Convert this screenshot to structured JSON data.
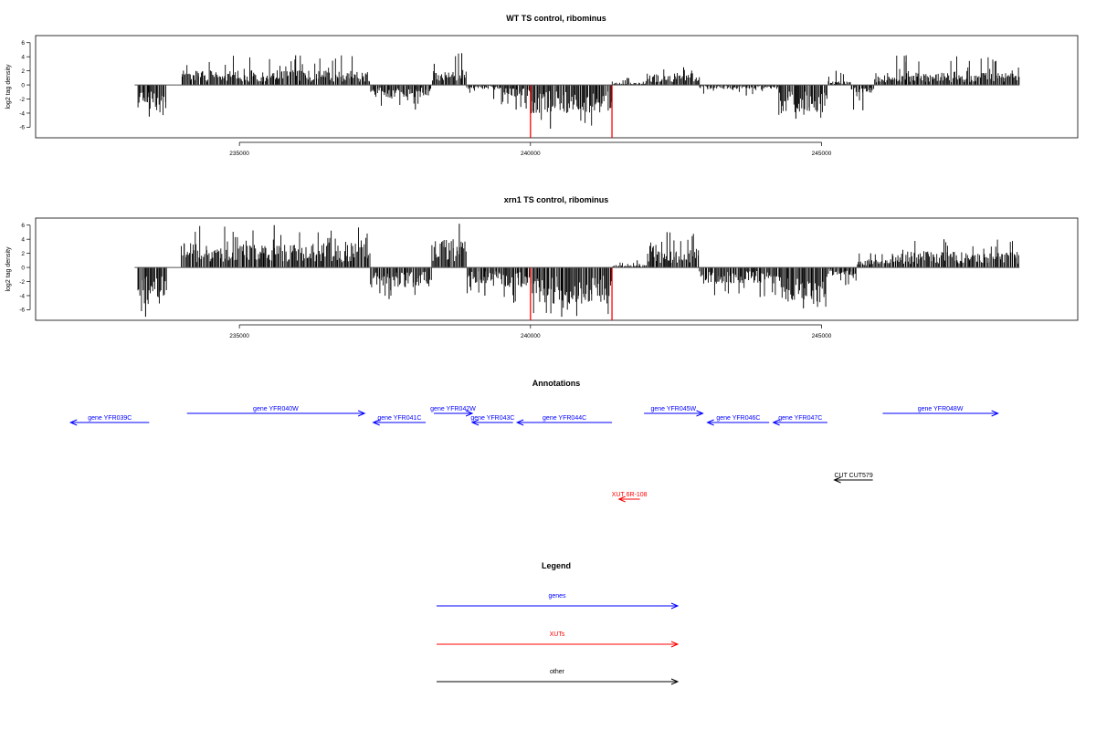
{
  "colors": {
    "genes": "#0000ff",
    "xuts": "#ff0000",
    "other": "#000000",
    "signal": "#000000",
    "marker": "#ff0000"
  },
  "chart_data": [
    {
      "type": "bar",
      "title": "WT TS control, ribominus",
      "ylabel": "log2 tag density",
      "ylim": [
        -7.5,
        7
      ],
      "xlim": [
        231500,
        249400
      ],
      "yticks": [
        -6,
        -4,
        -2,
        0,
        2,
        4,
        6
      ],
      "xticks": [
        235000,
        240000,
        245000
      ],
      "baseline_range": [
        233200,
        248400
      ],
      "marker_positions": [
        240000,
        241400
      ],
      "marker_value": -7.5,
      "segments": [
        [
          233250,
          233750,
          -1,
          -3.0,
          -4.5
        ],
        [
          234000,
          237250,
          1,
          1.8,
          4.2
        ],
        [
          237250,
          238300,
          -1,
          -1.5,
          -3.5
        ],
        [
          238300,
          238500,
          1,
          1.5,
          3.0
        ],
        [
          238500,
          238900,
          1,
          2.0,
          4.5
        ],
        [
          238900,
          239500,
          -1,
          -0.5,
          -2.0
        ],
        [
          239500,
          240000,
          -1,
          -1.5,
          -3.5
        ],
        [
          240000,
          241400,
          -1,
          -3.5,
          -6.2
        ],
        [
          241400,
          242000,
          1,
          0.3,
          1.0
        ],
        [
          242000,
          242900,
          1,
          1.5,
          2.5
        ],
        [
          242900,
          244250,
          -1,
          -0.5,
          -1.5
        ],
        [
          244250,
          245100,
          -1,
          -3.5,
          -4.8
        ],
        [
          245100,
          245500,
          1,
          0.5,
          2.0
        ],
        [
          245500,
          245900,
          -1,
          -1.0,
          -3.6
        ],
        [
          245900,
          248400,
          1,
          1.5,
          4.2
        ]
      ]
    },
    {
      "type": "bar",
      "title": "xrn1 TS control, ribominus",
      "ylabel": "log2 tag density",
      "ylim": [
        -7.5,
        7
      ],
      "xlim": [
        231500,
        249400
      ],
      "yticks": [
        -6,
        -4,
        -2,
        0,
        2,
        4,
        6
      ],
      "xticks": [
        235000,
        240000,
        245000
      ],
      "baseline_range": [
        233200,
        248400
      ],
      "marker_positions": [
        240000,
        241400
      ],
      "marker_value": -7.5,
      "segments": [
        [
          233250,
          233750,
          -1,
          -4.0,
          -7.0
        ],
        [
          234000,
          237250,
          1,
          3.0,
          6.0
        ],
        [
          237250,
          238300,
          -1,
          -2.5,
          -4.5
        ],
        [
          238300,
          238900,
          1,
          3.5,
          6.2
        ],
        [
          238900,
          239500,
          -1,
          -2.0,
          -4.0
        ],
        [
          239500,
          240000,
          -1,
          -2.5,
          -5.0
        ],
        [
          240000,
          241400,
          -1,
          -4.5,
          -7.0
        ],
        [
          241400,
          242000,
          1,
          0.3,
          1.0
        ],
        [
          242000,
          242900,
          1,
          2.5,
          5.0
        ],
        [
          242900,
          244250,
          -1,
          -2.0,
          -4.2
        ],
        [
          244250,
          245100,
          -1,
          -4.0,
          -5.8
        ],
        [
          245100,
          245600,
          -1,
          -1.0,
          -2.5
        ],
        [
          245600,
          246200,
          1,
          1.0,
          2.0
        ],
        [
          246200,
          248400,
          1,
          2.0,
          4.0
        ]
      ]
    }
  ],
  "annotations": {
    "title": "Annotations",
    "xlim": [
      231500,
      249400
    ],
    "items": [
      {
        "label": "gene YFR039C",
        "start": 232100,
        "end": 233450,
        "strand": "-",
        "row": "low",
        "category": "genes"
      },
      {
        "label": "gene YFR040W",
        "start": 234100,
        "end": 237150,
        "strand": "+",
        "row": "high",
        "category": "genes"
      },
      {
        "label": "gene YFR041C",
        "start": 237300,
        "end": 238200,
        "strand": "-",
        "row": "low",
        "category": "genes"
      },
      {
        "label": "gene YFR042W",
        "start": 238340,
        "end": 239000,
        "strand": "+",
        "row": "high",
        "category": "genes"
      },
      {
        "label": "gene YFR043C",
        "start": 239000,
        "end": 239700,
        "strand": "-",
        "row": "low",
        "category": "genes"
      },
      {
        "label": "gene YFR044C",
        "start": 239770,
        "end": 241400,
        "strand": "-",
        "row": "low",
        "category": "genes"
      },
      {
        "label": "gene YFR045W",
        "start": 241950,
        "end": 242960,
        "strand": "+",
        "row": "high",
        "category": "genes"
      },
      {
        "label": "gene YFR046C",
        "start": 243040,
        "end": 244100,
        "strand": "-",
        "row": "low",
        "category": "genes"
      },
      {
        "label": "gene YFR047C",
        "start": 244170,
        "end": 245100,
        "strand": "-",
        "row": "low",
        "category": "genes"
      },
      {
        "label": "gene YFR048W",
        "start": 246050,
        "end": 248030,
        "strand": "+",
        "row": "high",
        "category": "genes"
      },
      {
        "label": "XUT 6R-108",
        "start": 241520,
        "end": 241880,
        "strand": "-",
        "row": "xut",
        "category": "xuts"
      },
      {
        "label": "CUT CUT579",
        "start": 245220,
        "end": 245880,
        "strand": "-",
        "row": "cut",
        "category": "other"
      }
    ]
  },
  "legend": {
    "title": "Legend",
    "items": [
      {
        "label": "genes",
        "category": "genes"
      },
      {
        "label": "XUTs",
        "category": "xuts"
      },
      {
        "label": "other",
        "category": "other"
      }
    ]
  }
}
